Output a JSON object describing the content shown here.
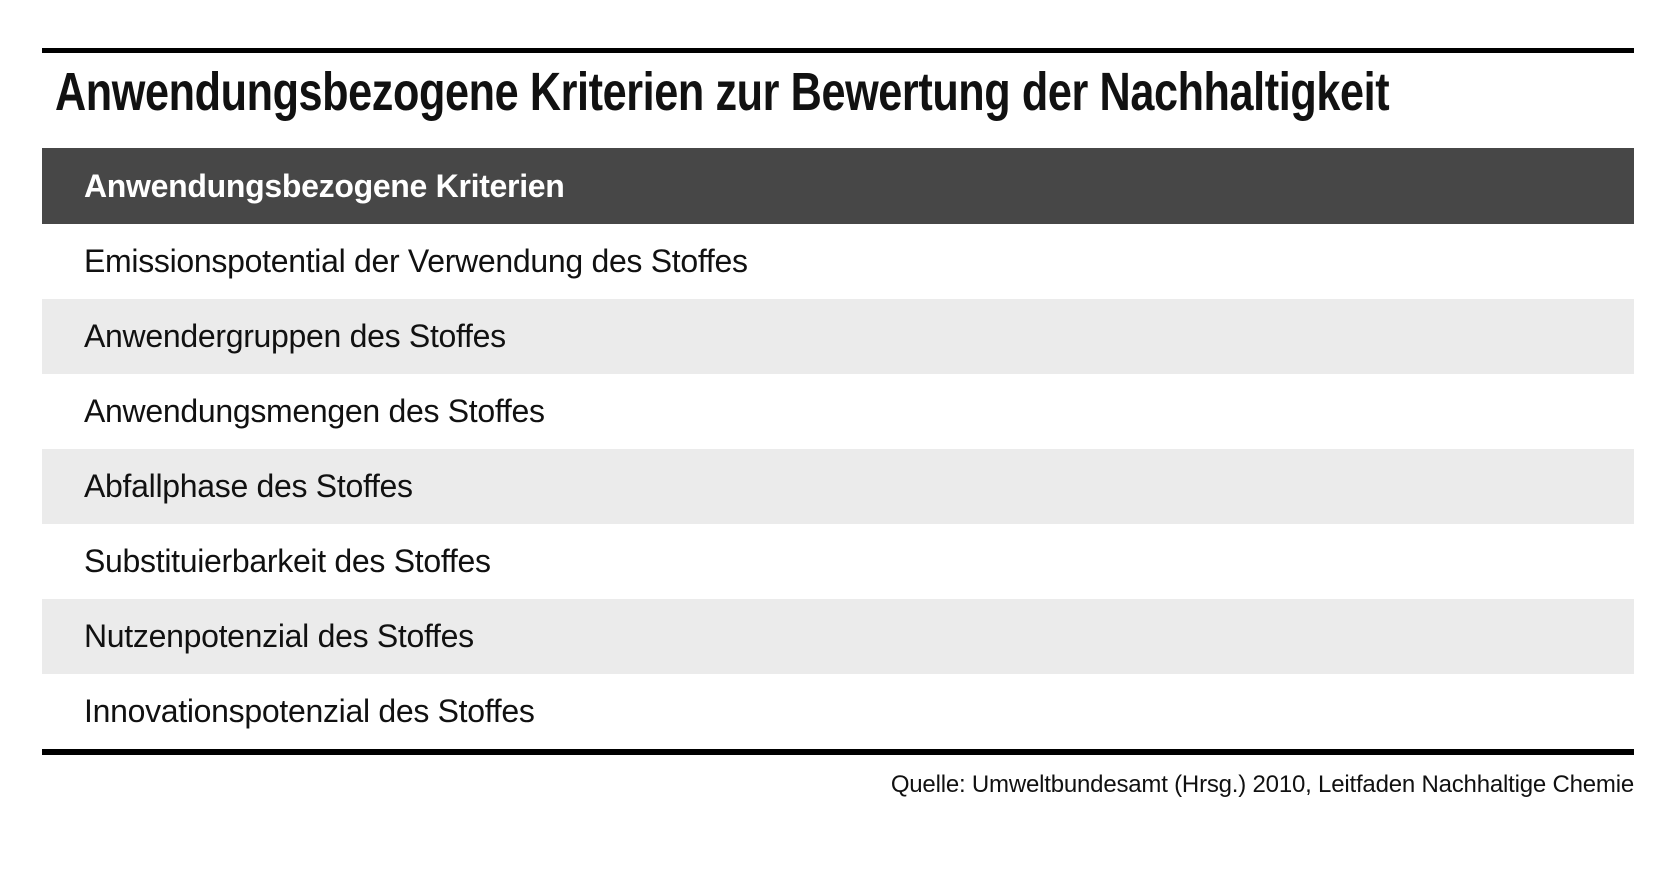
{
  "figure": {
    "title": "Anwendungsbezogene Kriterien zur Bewertung der Nachhaltigkeit",
    "source": "Quelle: Umweltbundesamt (Hrsg.) 2010, Leitfaden Nachhaltige Chemie"
  },
  "table": {
    "header": "Anwendungsbezogene Kriterien",
    "rows": [
      "Emissionspotential der Verwendung des Stoffes",
      "Anwendergruppen des Stoffes",
      "Anwendungsmengen des Stoffes",
      "Abfallphase des Stoffes",
      "Substituierbarkeit des Stoffes",
      "Nutzenpotenzial des Stoffes",
      "Innovationspotenzial des Stoffes"
    ]
  },
  "colors": {
    "header_bg": "#474747",
    "header_text": "#ffffff",
    "row_bg": "#ffffff",
    "row_alt_bg": "#ebebeb",
    "text": "#111111",
    "rule": "#000000"
  },
  "chart_data": {
    "type": "table",
    "title": "Anwendungsbezogene Kriterien zur Bewertung der Nachhaltigkeit",
    "columns": [
      "Anwendungsbezogene Kriterien"
    ],
    "rows": [
      [
        "Emissionspotential der Verwendung des Stoffes"
      ],
      [
        "Anwendergruppen des Stoffes"
      ],
      [
        "Anwendungsmengen des Stoffes"
      ],
      [
        "Abfallphase des Stoffes"
      ],
      [
        "Substituierbarkeit des Stoffes"
      ],
      [
        "Nutzenpotenzial des Stoffes"
      ],
      [
        "Innovationspotenzial des Stoffes"
      ]
    ],
    "source": "Quelle: Umweltbundesamt (Hrsg.) 2010, Leitfaden Nachhaltige Chemie",
    "layout": {
      "row_striping": "alternating, first data row white",
      "header_style": "dark bar with white bold text",
      "top_and_bottom_rules": true,
      "source_position": "bottom-right"
    }
  }
}
